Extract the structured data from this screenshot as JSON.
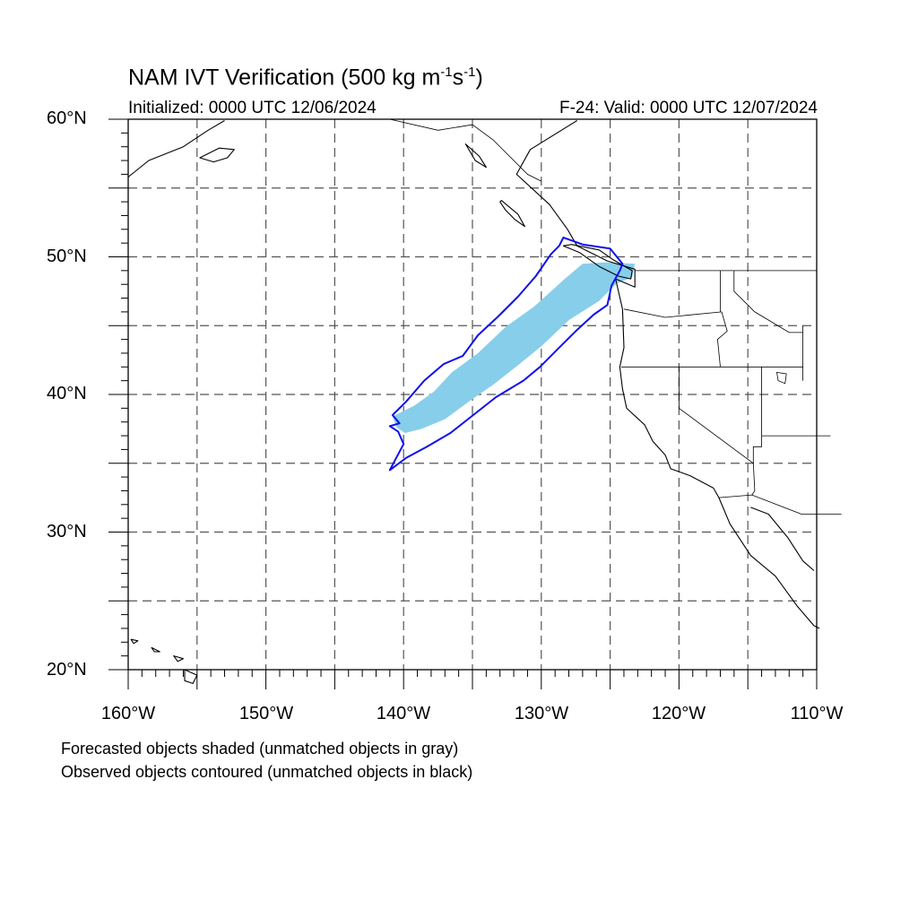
{
  "title": {
    "main": "NAM IVT Verification (500 kg m",
    "sup1": "-1",
    "mid": "s",
    "sup2": "-1",
    "end": ")"
  },
  "subtitle": {
    "left": "Initialized: 0000 UTC 12/06/2024",
    "right": "F-24: Valid: 0000 UTC 12/07/2024"
  },
  "axes": {
    "lon_range": [
      -160,
      -110
    ],
    "lat_range": [
      20,
      60
    ],
    "lat_labels": [
      "60°N",
      "50°N",
      "40°N",
      "30°N",
      "20°N"
    ],
    "lon_labels": [
      "160°W",
      "150°W",
      "140°W",
      "130°W",
      "120°W",
      "110°W"
    ],
    "grid_spacing_deg": 5,
    "grid": true
  },
  "legend": {
    "line1": "Forecasted objects shaded (unmatched objects in gray)",
    "line2": "Observed objects contoured (unmatched objects in black)"
  },
  "colors": {
    "forecast_fill": "#87ceeb",
    "observed_contour": "#1010ee",
    "coastline": "#000000",
    "grid": "#555555"
  },
  "objects": {
    "forecast_object": {
      "matched": true,
      "polygon_lonlat": [
        [
          -140.8,
          38.4
        ],
        [
          -139.2,
          39.2
        ],
        [
          -137.8,
          40.2
        ],
        [
          -136.5,
          41.6
        ],
        [
          -134.6,
          43.0
        ],
        [
          -132.6,
          44.9
        ],
        [
          -130.5,
          46.4
        ],
        [
          -128.3,
          48.4
        ],
        [
          -127.0,
          49.5
        ],
        [
          -125.4,
          49.6
        ],
        [
          -123.2,
          49.5
        ],
        [
          -123.4,
          48.5
        ],
        [
          -124.5,
          48.1
        ],
        [
          -125.8,
          46.8
        ],
        [
          -128.0,
          45.4
        ],
        [
          -130.0,
          43.5
        ],
        [
          -131.6,
          42.2
        ],
        [
          -133.5,
          40.7
        ],
        [
          -135.1,
          39.6
        ],
        [
          -137.0,
          38.2
        ],
        [
          -138.7,
          37.5
        ],
        [
          -139.9,
          37.2
        ],
        [
          -140.5,
          37.6
        ]
      ]
    },
    "observed_object": {
      "matched": true,
      "contour_lonlat": [
        [
          -141.0,
          34.5
        ],
        [
          -139.8,
          35.4
        ],
        [
          -138.3,
          36.2
        ],
        [
          -136.6,
          37.2
        ],
        [
          -135.2,
          38.3
        ],
        [
          -133.3,
          39.8
        ],
        [
          -131.3,
          41.0
        ],
        [
          -130.1,
          42.0
        ],
        [
          -128.8,
          43.3
        ],
        [
          -127.5,
          44.6
        ],
        [
          -126.2,
          45.8
        ],
        [
          -125.2,
          46.5
        ],
        [
          -124.9,
          47.9
        ],
        [
          -124.3,
          49.0
        ],
        [
          -124.1,
          49.5
        ],
        [
          -125.0,
          50.6
        ],
        [
          -127.0,
          50.9
        ],
        [
          -128.4,
          51.4
        ],
        [
          -128.7,
          50.8
        ],
        [
          -129.3,
          50.2
        ],
        [
          -130.4,
          48.6
        ],
        [
          -131.7,
          47.1
        ],
        [
          -133.1,
          45.7
        ],
        [
          -134.6,
          44.3
        ],
        [
          -135.7,
          42.8
        ],
        [
          -137.1,
          42.2
        ],
        [
          -138.5,
          41.0
        ],
        [
          -139.8,
          39.5
        ],
        [
          -140.8,
          38.5
        ],
        [
          -140.3,
          37.9
        ],
        [
          -141.0,
          37.7
        ],
        [
          -140.4,
          37.3
        ],
        [
          -140.0,
          36.4
        ],
        [
          -141.0,
          34.5
        ]
      ]
    }
  },
  "coastlines": {
    "north_america_west": [
      [
        -127.4,
        59.9
      ],
      [
        -130.8,
        57.8
      ],
      [
        -131.8,
        56.0
      ],
      [
        -129.4,
        53.8
      ],
      [
        -128.1,
        52.0
      ],
      [
        -127.4,
        50.8
      ],
      [
        -125.2,
        49.7
      ],
      [
        -123.2,
        49.1
      ],
      [
        -123.2,
        47.8
      ],
      [
        -124.6,
        48.4
      ],
      [
        -124.1,
        46.2
      ],
      [
        -124.0,
        43.4
      ],
      [
        -124.3,
        42.0
      ],
      [
        -124.1,
        40.4
      ],
      [
        -123.8,
        39.0
      ],
      [
        -122.5,
        37.8
      ],
      [
        -121.9,
        36.6
      ],
      [
        -121.0,
        35.6
      ],
      [
        -120.6,
        34.6
      ],
      [
        -119.2,
        34.1
      ],
      [
        -117.5,
        33.2
      ],
      [
        -117.1,
        32.5
      ],
      [
        -116.3,
        30.6
      ],
      [
        -114.8,
        28.3
      ],
      [
        -113.0,
        26.8
      ],
      [
        -111.4,
        24.6
      ],
      [
        -110.2,
        23.2
      ],
      [
        -109.8,
        23.0
      ]
    ],
    "gulf_of_california_east": [
      [
        -114.8,
        31.8
      ],
      [
        -113.5,
        31.3
      ],
      [
        -112.1,
        29.6
      ],
      [
        -111.0,
        27.9
      ],
      [
        -110.2,
        27.2
      ]
    ],
    "vancouver_island": [
      [
        -128.4,
        50.8
      ],
      [
        -127.2,
        50.3
      ],
      [
        -125.8,
        49.3
      ],
      [
        -124.4,
        48.6
      ],
      [
        -123.5,
        48.4
      ],
      [
        -123.4,
        49.0
      ],
      [
        -124.8,
        49.8
      ],
      [
        -125.8,
        50.5
      ],
      [
        -127.8,
        50.9
      ]
    ],
    "haida_gwaii": [
      [
        -132.9,
        54.1
      ],
      [
        -131.7,
        53.1
      ],
      [
        -131.2,
        52.2
      ],
      [
        -131.9,
        52.7
      ],
      [
        -132.6,
        53.4
      ],
      [
        -133.0,
        54.0
      ]
    ],
    "alaska_peninsula": [
      [
        -160.0,
        55.8
      ],
      [
        -158.5,
        57.0
      ],
      [
        -156.0,
        58.0
      ],
      [
        -154.2,
        59.2
      ],
      [
        -153.0,
        59.9
      ]
    ],
    "kodiak": [
      [
        -154.8,
        57.2
      ],
      [
        -153.4,
        57.9
      ],
      [
        -152.3,
        57.8
      ],
      [
        -152.8,
        57.2
      ],
      [
        -153.8,
        56.9
      ],
      [
        -154.8,
        57.2
      ]
    ],
    "hawaii_big_island": [
      [
        -155.9,
        20.0
      ],
      [
        -155.0,
        19.6
      ],
      [
        -155.3,
        19.0
      ],
      [
        -155.9,
        19.2
      ],
      [
        -155.9,
        20.0
      ]
    ],
    "hawaii_maui": [
      [
        -156.7,
        21.0
      ],
      [
        -156.0,
        20.8
      ],
      [
        -156.4,
        20.6
      ],
      [
        -156.7,
        21.0
      ]
    ],
    "hawaii_oahu": [
      [
        -158.3,
        21.6
      ],
      [
        -157.7,
        21.3
      ],
      [
        -158.1,
        21.3
      ],
      [
        -158.3,
        21.6
      ]
    ],
    "hawaii_kauai": [
      [
        -159.8,
        22.2
      ],
      [
        -159.3,
        22.1
      ],
      [
        -159.6,
        21.9
      ],
      [
        -159.8,
        22.2
      ]
    ],
    "alaska_east_island_fragments": [
      [
        -135.5,
        58.2
      ],
      [
        -134.5,
        57.3
      ],
      [
        -134.0,
        56.5
      ],
      [
        -134.8,
        57.0
      ],
      [
        -135.5,
        58.2
      ]
    ]
  },
  "political_borders": {
    "canada_us_49n": [
      [
        -123.2,
        49.0
      ],
      [
        -110.0,
        49.0
      ]
    ],
    "alaska_bc_border": [
      [
        -141.0,
        60.0
      ],
      [
        -137.5,
        59.2
      ],
      [
        -135.0,
        59.6
      ],
      [
        -133.5,
        58.5
      ],
      [
        -131.0,
        56.0
      ],
      [
        -130.0,
        55.5
      ]
    ],
    "wa_or": [
      [
        -124.0,
        46.2
      ],
      [
        -121.0,
        45.6
      ],
      [
        -116.9,
        46.0
      ]
    ],
    "wa_id": [
      [
        -117.0,
        49.0
      ],
      [
        -117.0,
        46.0
      ]
    ],
    "or_id": [
      [
        -116.9,
        46.0
      ],
      [
        -116.5,
        44.6
      ],
      [
        -117.2,
        44.0
      ],
      [
        -117.0,
        42.0
      ]
    ],
    "or_ca_nv_42n": [
      [
        -124.2,
        42.0
      ],
      [
        -111.0,
        42.0
      ]
    ],
    "ca_nv": [
      [
        -120.0,
        42.0
      ],
      [
        -120.0,
        39.0
      ],
      [
        -114.6,
        35.0
      ]
    ],
    "nv_az": [
      [
        -114.6,
        35.0
      ],
      [
        -114.6,
        36.2
      ],
      [
        -114.0,
        36.2
      ],
      [
        -114.0,
        42.0
      ]
    ],
    "az_ut": [
      [
        -114.0,
        37.0
      ],
      [
        -109.0,
        37.0
      ]
    ],
    "ca_az": [
      [
        -114.6,
        35.0
      ],
      [
        -114.5,
        33.0
      ],
      [
        -114.7,
        32.7
      ]
    ],
    "us_mexico": [
      [
        -117.1,
        32.5
      ],
      [
        -114.7,
        32.7
      ],
      [
        -111.1,
        31.3
      ],
      [
        -108.2,
        31.3
      ]
    ],
    "id_mt": [
      [
        -116.0,
        49.0
      ],
      [
        -116.0,
        47.5
      ],
      [
        -114.5,
        46.0
      ],
      [
        -112.0,
        44.5
      ],
      [
        -111.0,
        44.5
      ]
    ],
    "wy_id": [
      [
        -111.0,
        45.0
      ],
      [
        -111.0,
        41.0
      ]
    ],
    "great_salt_lake": [
      [
        -112.9,
        41.6
      ],
      [
        -112.2,
        41.5
      ],
      [
        -112.3,
        40.8
      ],
      [
        -112.8,
        41.0
      ],
      [
        -112.9,
        41.6
      ]
    ]
  }
}
